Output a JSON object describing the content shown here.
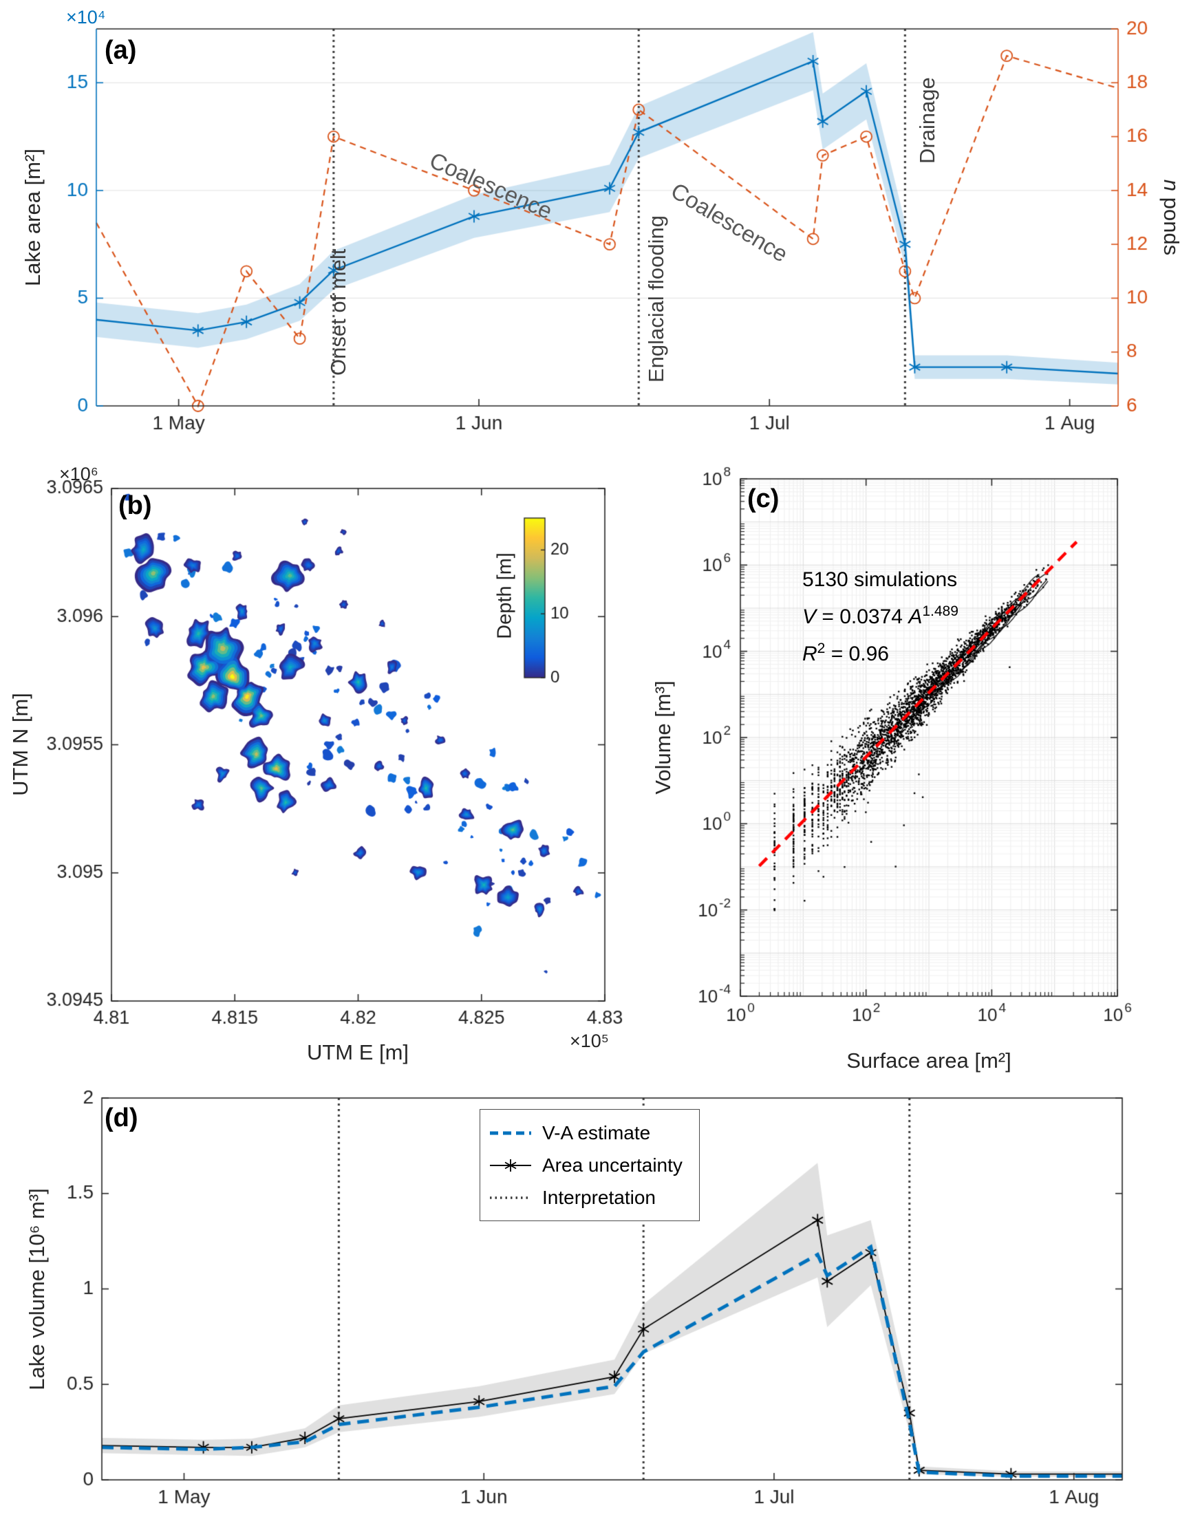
{
  "figure": {
    "colors": {
      "matlab_blue": "#0072BD",
      "matlab_orange": "#D95319",
      "fit_red": "#FF0000",
      "axis_dark": "#262626",
      "annotation_gray": "#595959",
      "area_band": "rgba(0,114,189,0.20)",
      "volume_band": "rgba(0,0,0,0.12)"
    }
  },
  "chart_data": [
    {
      "id": "a",
      "type": "line",
      "panel_label": "(a)",
      "x_axis": {
        "range": [
          -8.5,
          97
        ],
        "ticks": [
          0,
          31,
          61,
          92
        ],
        "tick_labels": [
          "1 May",
          "1 Jun",
          "1 Jul",
          "1 Aug"
        ]
      },
      "y_left": {
        "label": "Lake area [m²]",
        "exp_label": "×10⁴",
        "range": [
          0,
          17.5
        ],
        "ticks": [
          0,
          5,
          10,
          15
        ],
        "color": "#0072BD"
      },
      "y_right": {
        "label_italic": "n",
        "label_rest": " ponds",
        "range": [
          6,
          20
        ],
        "ticks": [
          6,
          8,
          10,
          12,
          14,
          16,
          18,
          20
        ],
        "color": "#D95319"
      },
      "x_days": [
        -8.5,
        2,
        7,
        12.5,
        16,
        30.5,
        44.5,
        47.5,
        65.5,
        66.5,
        71,
        75,
        76,
        85.5,
        97
      ],
      "markers": [
        0,
        1,
        1,
        1,
        1,
        1,
        1,
        1,
        1,
        1,
        1,
        1,
        1,
        1,
        0
      ],
      "lake_area_1e4": [
        4.0,
        3.5,
        3.9,
        4.8,
        6.3,
        8.8,
        10.1,
        12.7,
        16.0,
        13.2,
        14.6,
        7.5,
        1.8,
        1.8,
        1.5
      ],
      "area_band_halfwidth": [
        0.8,
        0.8,
        0.8,
        0.85,
        0.9,
        1.0,
        1.1,
        1.2,
        1.35,
        1.3,
        1.3,
        1.0,
        0.55,
        0.55,
        0.5
      ],
      "n_ponds": [
        12.8,
        6,
        11,
        8.5,
        16,
        14,
        12,
        17,
        12.2,
        15.3,
        16,
        11,
        10,
        19,
        17.8
      ],
      "vlines": [
        {
          "x": 16,
          "label": "Onset of melt"
        },
        {
          "x": 47.5,
          "label": "Englacial flooding"
        },
        {
          "x": 75,
          "label": "Drainage"
        }
      ],
      "annotations": [
        {
          "text": "Coalescence"
        },
        {
          "text": "Coalescence"
        }
      ]
    },
    {
      "id": "b",
      "type": "heatmap",
      "panel_label": "(b)",
      "xlabel": "UTM E [m]",
      "x_exp_label": "×10⁵",
      "ylabel": "UTM N [m]",
      "y_exp_label": "×10⁶",
      "x_range_m": [
        481000,
        483000
      ],
      "y_range_m": [
        3094500,
        3096500
      ],
      "x_ticks": [
        481000,
        481500,
        482000,
        482500,
        483000
      ],
      "x_tick_labels": [
        "4.81",
        "4.815",
        "4.82",
        "4.825",
        "4.83"
      ],
      "y_ticks": [
        3094500,
        3095000,
        3095500,
        3096000,
        3096500
      ],
      "y_tick_labels": [
        "3.0945",
        "3.095",
        "3.0955",
        "3.096",
        "3.0965"
      ],
      "colorbar": {
        "label": "Depth [m]",
        "ticks": [
          0,
          10,
          20
        ],
        "max": 25
      },
      "colormap_stops": [
        [
          0,
          "352a87"
        ],
        [
          0.125,
          "0f5cdd"
        ],
        [
          0.25,
          "1481d6"
        ],
        [
          0.375,
          "06a4ca"
        ],
        [
          0.5,
          "2eb7a4"
        ],
        [
          0.625,
          "87bf77"
        ],
        [
          0.75,
          "d1bb59"
        ],
        [
          0.875,
          "fec634"
        ],
        [
          1,
          "f9fb0e"
        ]
      ],
      "lakes": [
        [
          481130,
          3096260,
          55,
          10
        ],
        [
          481170,
          3096170,
          65,
          16
        ],
        [
          481330,
          3096200,
          30,
          6
        ],
        [
          481510,
          3096236,
          20,
          5
        ],
        [
          481725,
          3096160,
          60,
          14
        ],
        [
          481800,
          3096200,
          25,
          5
        ],
        [
          481920,
          3096255,
          15,
          4
        ],
        [
          481784,
          3096368,
          14,
          4
        ],
        [
          481941,
          3096330,
          12,
          3
        ],
        [
          481176,
          3095953,
          40,
          8
        ],
        [
          481529,
          3096021,
          28,
          8
        ],
        [
          481686,
          3095953,
          22,
          5
        ],
        [
          481941,
          3096047,
          16,
          4
        ],
        [
          482098,
          3095972,
          14,
          4
        ],
        [
          481353,
          3095934,
          55,
          12
        ],
        [
          481451,
          3095877,
          70,
          18
        ],
        [
          481373,
          3095802,
          65,
          20
        ],
        [
          481490,
          3095764,
          70,
          25
        ],
        [
          481412,
          3095689,
          55,
          16
        ],
        [
          481549,
          3095689,
          60,
          24
        ],
        [
          481608,
          3095613,
          50,
          15
        ],
        [
          481725,
          3095802,
          45,
          10
        ],
        [
          481824,
          3095896,
          30,
          7
        ],
        [
          482000,
          3095745,
          40,
          12
        ],
        [
          482137,
          3095802,
          25,
          6
        ],
        [
          481863,
          3095594,
          26,
          8
        ],
        [
          481588,
          3095462,
          55,
          18
        ],
        [
          481667,
          3095406,
          50,
          20
        ],
        [
          481608,
          3095330,
          45,
          14
        ],
        [
          481706,
          3095274,
          40,
          12
        ],
        [
          481451,
          3095387,
          28,
          8
        ],
        [
          481353,
          3095266,
          22,
          6
        ],
        [
          481882,
          3095342,
          28,
          7
        ],
        [
          482086,
          3095417,
          18,
          5
        ],
        [
          482275,
          3095330,
          38,
          12
        ],
        [
          482439,
          3095228,
          28,
          8
        ],
        [
          482627,
          3095168,
          42,
          14
        ],
        [
          482753,
          3095085,
          22,
          6
        ],
        [
          482510,
          3094953,
          40,
          11
        ],
        [
          482608,
          3094904,
          35,
          9
        ],
        [
          482243,
          3095002,
          28,
          8
        ],
        [
          482008,
          3095077,
          22,
          6
        ],
        [
          481745,
          3095002,
          15,
          4
        ],
        [
          482737,
          3094858,
          26,
          8
        ],
        [
          482894,
          3094926,
          18,
          5
        ],
        [
          482333,
          3095519,
          18,
          5
        ],
        [
          482188,
          3095594,
          15,
          4
        ],
        [
          482431,
          3095387,
          20,
          5
        ]
      ],
      "speck_seed": 7,
      "speck_count": 95
    },
    {
      "id": "c",
      "type": "scatter",
      "panel_label": "(c)",
      "xlabel": "Surface area [m²]",
      "ylabel": "Volume [m³]",
      "x_exp_ticks": [
        0,
        2,
        4,
        6
      ],
      "y_exp_ticks": [
        -4,
        -2,
        0,
        2,
        4,
        6,
        8
      ],
      "x_log_range": [
        0,
        6
      ],
      "y_log_range": [
        -4,
        8
      ],
      "annotation": {
        "line1": "5130 simulations",
        "eq_v": "V",
        "eq_mid": " = 0.0374  ",
        "eq_a": "A",
        "eq_exp": "1.489",
        "r_sym": "R",
        "r_sup": "2",
        "r_rest": " = 0.96"
      },
      "fit": {
        "coef": 0.0374,
        "exponent": 1.489,
        "r2": 0.96,
        "n_simulations": 5130,
        "logA_range": [
          0.3,
          5.35
        ],
        "color": "#FF0000"
      },
      "scatter_gen": {
        "seed": 42,
        "count": 2600,
        "quantum": 3.5,
        "quantize_below": 60,
        "traces": 7,
        "trace_steps": 26
      }
    },
    {
      "id": "d",
      "type": "line",
      "panel_label": "(d)",
      "x_axis": {
        "range": [
          -8.5,
          97
        ],
        "ticks": [
          0,
          31,
          61,
          92
        ],
        "tick_labels": [
          "1 May",
          "1 Jun",
          "1 Jul",
          "1 Aug"
        ]
      },
      "y_axis": {
        "label": "Lake volume [10⁶ m³]",
        "range": [
          0,
          2
        ],
        "ticks": [
          0,
          0.5,
          1,
          1.5,
          2
        ],
        "tick_labels": [
          "0",
          "0.5",
          "1",
          "1.5",
          "2"
        ]
      },
      "x_days": [
        -8.5,
        2,
        7,
        12.5,
        16,
        30.5,
        44.5,
        47.5,
        65.5,
        66.5,
        71,
        75,
        76,
        85.5,
        97
      ],
      "markers": [
        0,
        1,
        1,
        1,
        1,
        1,
        1,
        1,
        1,
        1,
        1,
        1,
        1,
        1,
        0
      ],
      "volume_1e6": [
        0.18,
        0.17,
        0.17,
        0.22,
        0.32,
        0.41,
        0.54,
        0.79,
        1.36,
        1.04,
        1.19,
        0.35,
        0.05,
        0.03,
        0.03
      ],
      "volume_band_halfwidth": [
        0.04,
        0.04,
        0.045,
        0.05,
        0.07,
        0.08,
        0.09,
        0.13,
        0.3,
        0.24,
        0.17,
        0.1,
        0.02,
        0.015,
        0.015
      ],
      "va_estimate_1e6": [
        0.17,
        0.16,
        0.17,
        0.2,
        0.29,
        0.38,
        0.49,
        0.67,
        1.18,
        1.07,
        1.22,
        0.3,
        0.04,
        0.02,
        0.02
      ],
      "vlines": [
        16,
        47.5,
        75
      ],
      "legend": [
        "V-A estimate",
        "Area uncertainty",
        "Interpretation"
      ]
    }
  ]
}
